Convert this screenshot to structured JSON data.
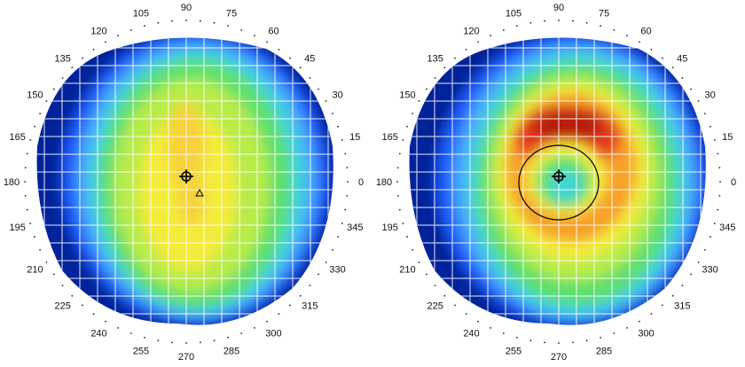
{
  "maps": [
    {
      "id": "left",
      "pattern": "flat",
      "show_triangle": true,
      "show_ring": false,
      "degree_labels": [
        "0",
        "15",
        "30",
        "45",
        "60",
        "75",
        "90",
        "105",
        "120",
        "135",
        "150",
        "165",
        "180",
        "195",
        "210",
        "225",
        "240",
        "255",
        "270",
        "285",
        "300",
        "315",
        "330",
        "345"
      ]
    },
    {
      "id": "right",
      "pattern": "bullseye",
      "show_triangle": false,
      "show_ring": true,
      "degree_labels": [
        "0",
        "15",
        "30",
        "45",
        "60",
        "75",
        "90",
        "105",
        "120",
        "135",
        "150",
        "165",
        "180",
        "195",
        "210",
        "225",
        "240",
        "255",
        "270",
        "285",
        "300",
        "315",
        "330",
        "345"
      ]
    }
  ],
  "colors": {
    "dark_blue": "#00209a",
    "blue": "#1a5cff",
    "light_blue": "#4aa8ff",
    "cyan": "#3fd6d6",
    "green": "#5ee06a",
    "yellow_green": "#b8ec4a",
    "yellow": "#f4ec3a",
    "orange": "#f7a02a",
    "red": "#e43a1a",
    "dark_red": "#b81c10",
    "grid": "#ffffff",
    "marker": "#000000"
  }
}
